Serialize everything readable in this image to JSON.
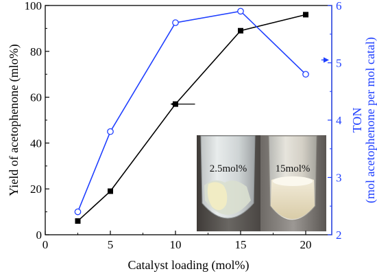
{
  "chart_data": {
    "type": "line",
    "xlabel": "Catalyst loading (mol%)",
    "ylabel": "Yield of acetophenone (mlo%)",
    "y2label_line1": "TON",
    "y2label_line2": "(mol acetophenone per mol catal)",
    "xlim": [
      0,
      22
    ],
    "ylim": [
      0,
      100
    ],
    "y2lim": [
      2,
      6
    ],
    "xticks": [
      0,
      5,
      10,
      15,
      20
    ],
    "yticks": [
      0,
      20,
      40,
      60,
      80,
      100
    ],
    "y2ticks": [
      2,
      3,
      4,
      5,
      6
    ],
    "series": [
      {
        "axis": "left",
        "color": "#000000",
        "marker": "filled-square",
        "x": [
          2.5,
          5,
          10,
          15,
          20
        ],
        "values": [
          6,
          19,
          57,
          89,
          96
        ]
      },
      {
        "axis": "right",
        "color": "#1f3fff",
        "marker": "open-circle",
        "x": [
          2.5,
          5,
          10,
          15,
          20
        ],
        "values": [
          2.4,
          3.8,
          5.7,
          5.9,
          4.8
        ]
      }
    ],
    "annotations": {
      "left_arrow": {
        "from": [
          11.5,
          57
        ],
        "to": [
          9.6,
          57
        ],
        "color": "#000000"
      },
      "right_arrow": {
        "from": [
          21.2,
          5.05
        ],
        "to": [
          22.0,
          5.05
        ],
        "color": "#1f3fff"
      }
    },
    "inset_photo": {
      "left_label": "2.5mol%",
      "right_label": "15mol%"
    }
  }
}
